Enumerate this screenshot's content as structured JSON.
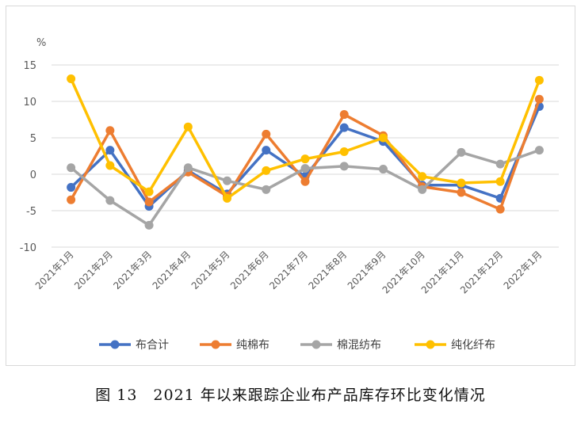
{
  "caption": "图 13　2021 年以来跟踪企业布产品库存环比变化情况",
  "chart_data": {
    "type": "line",
    "unit_label": "%",
    "categories": [
      "2021年1月",
      "2021年2月",
      "2021年3月",
      "2021年4月",
      "2021年5月",
      "2021年6月",
      "2021年7月",
      "2021年8月",
      "2021年9月",
      "2021年10月",
      "2021年11月",
      "2021年12月",
      "2022年1月"
    ],
    "ylim": [
      -10,
      15
    ],
    "yticks": [
      15,
      10,
      5,
      0,
      -5,
      -10
    ],
    "grid": true,
    "legend_position": "bottom",
    "series": [
      {
        "name": "布合计",
        "color": "#4472c4",
        "values": [
          -1.8,
          3.3,
          -4.4,
          0.5,
          -2.7,
          3.3,
          -0.3,
          6.4,
          4.5,
          -1.5,
          -1.5,
          -3.3,
          9.3
        ]
      },
      {
        "name": "纯棉布",
        "color": "#ed7d31",
        "values": [
          -3.5,
          6.0,
          -3.8,
          0.3,
          -3.0,
          5.5,
          -1.0,
          8.2,
          5.3,
          -1.7,
          -2.5,
          -4.8,
          10.3
        ]
      },
      {
        "name": "棉混纺布",
        "color": "#a5a5a5",
        "values": [
          0.9,
          -3.6,
          -7.0,
          0.9,
          -0.9,
          -2.1,
          0.8,
          1.1,
          0.7,
          -2.1,
          3.0,
          1.4,
          3.3
        ]
      },
      {
        "name": "纯化纤布",
        "color": "#ffc000",
        "values": [
          13.1,
          1.2,
          -2.4,
          6.5,
          -3.3,
          0.5,
          2.1,
          3.1,
          5.0,
          -0.3,
          -1.2,
          -1.0,
          12.9
        ]
      }
    ]
  }
}
